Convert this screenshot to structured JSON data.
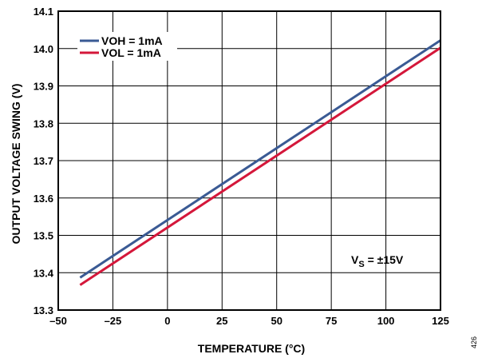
{
  "chart_data": {
    "type": "line",
    "xlabel": "TEMPERATURE (°C)",
    "ylabel": "OUTPUT VOLTAGE SWING (V)",
    "xlim": [
      -50,
      125
    ],
    "ylim": [
      13.3,
      14.1
    ],
    "xticks": [
      "–50",
      "–25",
      "0",
      "25",
      "50",
      "75",
      "100",
      "125"
    ],
    "xtick_values": [
      -50,
      -25,
      0,
      25,
      50,
      75,
      100,
      125
    ],
    "yticks": [
      "13.3",
      "13.4",
      "13.5",
      "13.6",
      "13.7",
      "13.8",
      "13.9",
      "14.0",
      "14.1"
    ],
    "ytick_values": [
      13.3,
      13.4,
      13.5,
      13.6,
      13.7,
      13.8,
      13.9,
      14.0,
      14.1
    ],
    "grid": true,
    "legend_position": "top-left",
    "series": [
      {
        "name": "VOH = 1mA",
        "color": "#3a5a94",
        "x": [
          -40,
          125
        ],
        "y": [
          13.387,
          14.022
        ]
      },
      {
        "name": "VOL = 1mA",
        "color": "#d4173a",
        "x": [
          -40,
          125
        ],
        "y": [
          13.367,
          14.002
        ]
      }
    ],
    "annotation": {
      "prefix": "V",
      "subscript": "S",
      "suffix": " = ±15V"
    },
    "figure_id": "426"
  }
}
